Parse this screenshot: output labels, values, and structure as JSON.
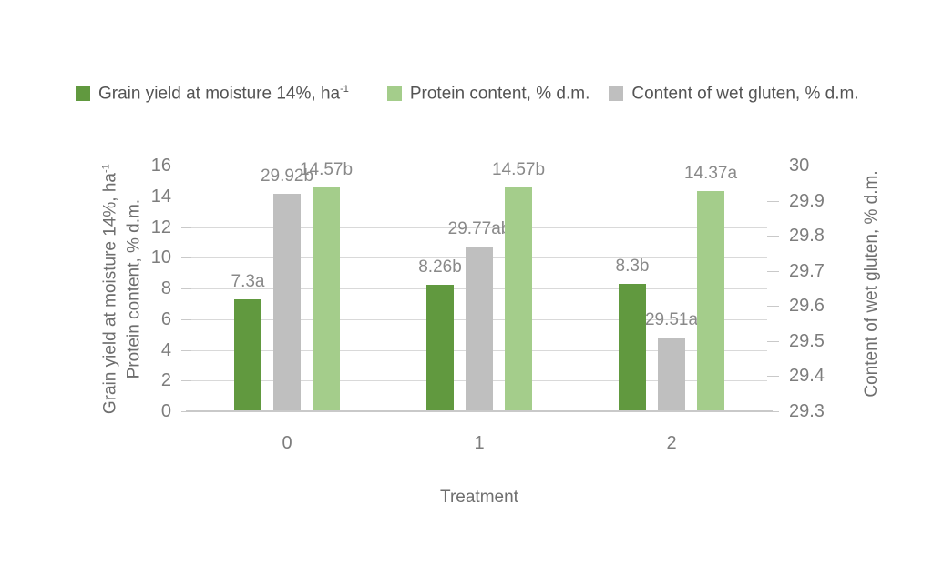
{
  "legend": {
    "items": [
      {
        "label": "Grain yield at moisture 14%, ha",
        "sup": "-1",
        "color": "#61993f"
      },
      {
        "label": "Protein content, % d.m.",
        "sup": "",
        "color": "#a4cd8b"
      },
      {
        "label": "Content of wet gluten, % d.m.",
        "sup": "",
        "color": "#bfbfbf"
      }
    ]
  },
  "chart_data": {
    "type": "bar",
    "categories": [
      "0",
      "1",
      "2"
    ],
    "series": [
      {
        "key": "grain-yield",
        "name": "Grain yield at moisture 14%, ha⁻¹",
        "axis": "left",
        "color": "#61993f",
        "values": [
          7.3,
          8.26,
          8.3
        ],
        "point_labels": [
          "7.3a",
          "8.26b",
          "8.3b"
        ]
      },
      {
        "key": "protein",
        "name": "Protein content, % d.m.",
        "axis": "left",
        "color": "#a4cd8b",
        "values": [
          14.57,
          14.57,
          14.37
        ],
        "point_labels": [
          "14.57b",
          "14.57b",
          "14.37a"
        ]
      },
      {
        "key": "wet-gluten",
        "name": "Content of wet gluten, % d.m.",
        "axis": "right",
        "color": "#bfbfbf",
        "values": [
          29.92,
          29.77,
          29.51
        ],
        "point_labels": [
          "29.92b",
          "29.77ab",
          "29.51a"
        ]
      }
    ],
    "bar_order": [
      0,
      2,
      1
    ],
    "left_axis": {
      "min": 0,
      "max": 16,
      "step": 2,
      "ticks": [
        0,
        2,
        4,
        6,
        8,
        10,
        12,
        14,
        16
      ],
      "title_line1": "Grain yield at moisture 14%, ha",
      "title_line1_sup": "-1",
      "title_line2": "Protein content, % d.m."
    },
    "right_axis": {
      "min": 29.3,
      "max": 30,
      "step": 0.1,
      "ticks": [
        "29.3",
        "29.4",
        "29.5",
        "29.6",
        "29.7",
        "29.8",
        "29.9",
        "30"
      ],
      "title": "Content of wet gluten, % d.m."
    },
    "x_axis": {
      "title": "Treatment"
    },
    "legend_position": "top",
    "grid": true,
    "colors": {
      "grid": "#d9d9d9",
      "axis_line": "#c9c9c9",
      "tick_text": "#7d7d7d",
      "data_label_text": "#898989",
      "legend_text": "#545454",
      "axis_title_text": "#6e6e6e"
    }
  }
}
